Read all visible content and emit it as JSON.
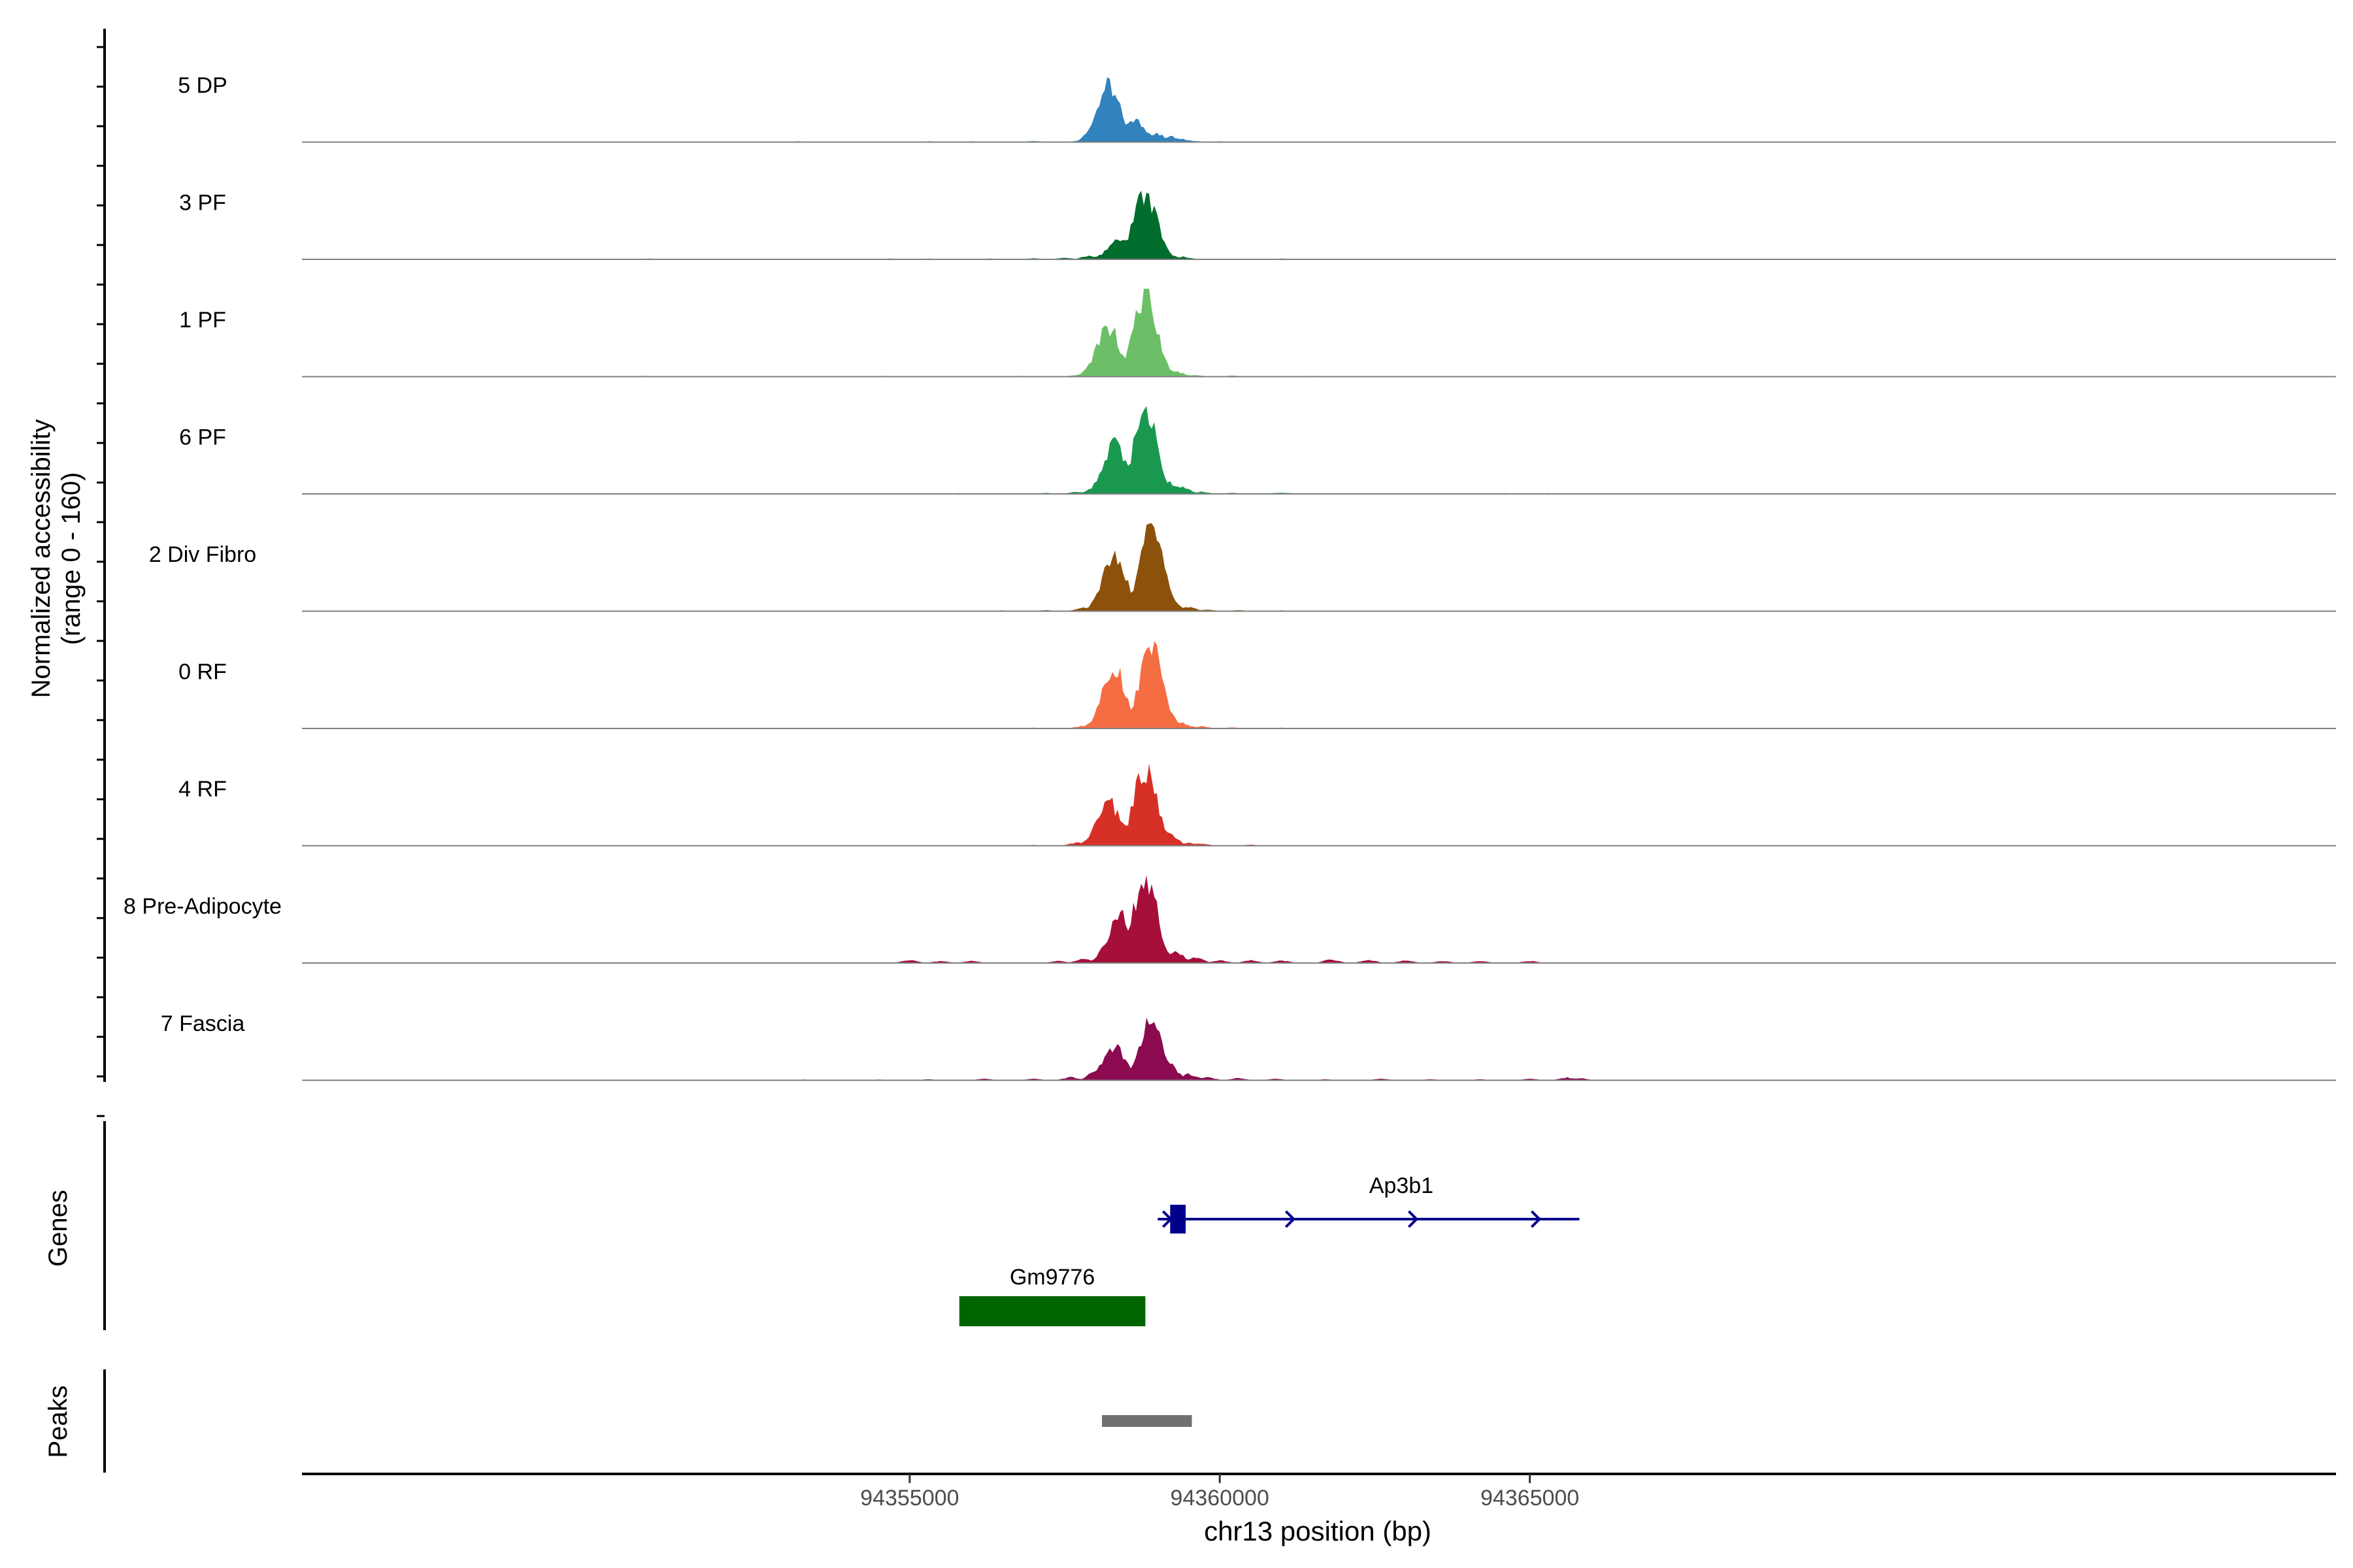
{
  "chart_data": {
    "type": "area",
    "title": "",
    "xlabel": "chr13 position (bp)",
    "ylabel_line1": "Normalized accessibility",
    "ylabel_line2": "(range 0 - 160)",
    "xlim": [
      94345200,
      94378000
    ],
    "ylim": [
      0,
      160
    ],
    "x_ticks": [
      94355000,
      94360000,
      94365000
    ],
    "x_tick_labels": [
      "94355000",
      "94360000",
      "94365000"
    ],
    "tracks": [
      {
        "name": "5 DP",
        "color": "#3182BD",
        "profile": [
          [
            94349900,
            1
          ],
          [
            94350800,
            1
          ],
          [
            94351400,
            1
          ],
          [
            94352600,
            1
          ],
          [
            94353200,
            1.5
          ],
          [
            94354600,
            1
          ],
          [
            94355300,
            1.5
          ],
          [
            94356000,
            1.5
          ],
          [
            94357000,
            2
          ],
          [
            94357700,
            2
          ],
          [
            94358000,
            4
          ],
          [
            94358400,
            7
          ],
          [
            94358800,
            15
          ],
          [
            94359000,
            16
          ],
          [
            94359200,
            12
          ],
          [
            94359400,
            6
          ],
          [
            94359600,
            2
          ],
          [
            94360000,
            1.5
          ],
          [
            94360600,
            1
          ],
          [
            94361400,
            1
          ],
          [
            94362500,
            1
          ],
          [
            94363500,
            1
          ],
          [
            94364200,
            1
          ],
          [
            94364800,
            1
          ],
          [
            94365400,
            0.5
          ]
        ],
        "peaks": [
          [
            94358600,
            40
          ],
          [
            94358200,
            110
          ],
          [
            94357000,
            1.5
          ]
        ]
      },
      {
        "name": "3 PF",
        "color": "#006D2C",
        "profile": [
          [
            94346500,
            0.5
          ],
          [
            94349000,
            1
          ],
          [
            94350800,
            1.5
          ],
          [
            94351700,
            1
          ],
          [
            94352600,
            1
          ],
          [
            94354000,
            1
          ],
          [
            94354700,
            1.5
          ],
          [
            94355300,
            1.5
          ],
          [
            94356300,
            1.5
          ],
          [
            94357000,
            2
          ],
          [
            94357500,
            3
          ],
          [
            94357900,
            7
          ],
          [
            94358300,
            11
          ],
          [
            94358700,
            10
          ],
          [
            94358900,
            14
          ],
          [
            94359200,
            8
          ],
          [
            94359400,
            5
          ],
          [
            94359500,
            2
          ],
          [
            94360500,
            1
          ],
          [
            94361000,
            1.5
          ],
          [
            94362000,
            1
          ],
          [
            94363000,
            1
          ],
          [
            94364000,
            1
          ],
          [
            94365000,
            1
          ],
          [
            94365800,
            1
          ]
        ],
        "peaks": [
          [
            94358800,
            120
          ],
          [
            94358400,
            40
          ]
        ]
      },
      {
        "name": "1 PF",
        "color": "#6CBF66",
        "profile": [
          [
            94347000,
            0.5
          ],
          [
            94348500,
            1
          ],
          [
            94350000,
            1
          ],
          [
            94350700,
            1.5
          ],
          [
            94352000,
            1
          ],
          [
            94353000,
            1
          ],
          [
            94354000,
            1
          ],
          [
            94354600,
            1.5
          ],
          [
            94356000,
            1
          ],
          [
            94356800,
            1.5
          ],
          [
            94357700,
            3
          ],
          [
            94358100,
            6
          ],
          [
            94358300,
            12
          ],
          [
            94358600,
            8
          ],
          [
            94358900,
            20
          ],
          [
            94359100,
            17
          ],
          [
            94359300,
            10
          ],
          [
            94359600,
            3
          ],
          [
            94360200,
            2
          ],
          [
            94360800,
            1
          ],
          [
            94361500,
            1.5
          ],
          [
            94362500,
            1
          ],
          [
            94363500,
            1
          ],
          [
            94364600,
            1
          ],
          [
            94365400,
            0.5
          ]
        ],
        "peaks": [
          [
            94358800,
            150
          ],
          [
            94358200,
            90
          ]
        ]
      },
      {
        "name": "6 PF",
        "color": "#1A9850",
        "profile": [
          [
            94347600,
            1
          ],
          [
            94349000,
            1
          ],
          [
            94350000,
            1
          ],
          [
            94351000,
            1
          ],
          [
            94352600,
            1
          ],
          [
            94354000,
            1
          ],
          [
            94355000,
            1
          ],
          [
            94355800,
            1.5
          ],
          [
            94356500,
            1.5
          ],
          [
            94357200,
            2
          ],
          [
            94357700,
            4
          ],
          [
            94358000,
            12
          ],
          [
            94358300,
            20
          ],
          [
            94358600,
            12
          ],
          [
            94358900,
            26
          ],
          [
            94359200,
            22
          ],
          [
            94359400,
            12
          ],
          [
            94359700,
            4
          ],
          [
            94360200,
            2
          ],
          [
            94361000,
            2
          ],
          [
            94361800,
            1
          ],
          [
            94362600,
            1.5
          ],
          [
            94363600,
            1
          ],
          [
            94364600,
            1.5
          ],
          [
            94365300,
            1.5
          ],
          [
            94365800,
            1
          ]
        ],
        "peaks": [
          [
            94358800,
            150
          ],
          [
            94358300,
            90
          ],
          [
            94361000,
            2
          ]
        ]
      },
      {
        "name": "2 Div Fibro",
        "color": "#8C510A",
        "profile": [
          [
            94348500,
            0.5
          ],
          [
            94350000,
            1
          ],
          [
            94351500,
            1
          ],
          [
            94353000,
            1
          ],
          [
            94354500,
            1
          ],
          [
            94355500,
            1
          ],
          [
            94356500,
            1.5
          ],
          [
            94357200,
            2
          ],
          [
            94357800,
            6
          ],
          [
            94358200,
            14
          ],
          [
            94358500,
            10
          ],
          [
            94358900,
            28
          ],
          [
            94359200,
            24
          ],
          [
            94359500,
            8
          ],
          [
            94359800,
            3
          ],
          [
            94360300,
            2
          ],
          [
            94361000,
            1.5
          ],
          [
            94362000,
            1
          ],
          [
            94363000,
            1
          ],
          [
            94364000,
            1
          ],
          [
            94364800,
            1
          ],
          [
            94365600,
            1
          ]
        ],
        "peaks": [
          [
            94358900,
            150
          ],
          [
            94358300,
            100
          ]
        ]
      },
      {
        "name": "0 RF",
        "color": "#F46D43",
        "profile": [
          [
            94346000,
            0.5
          ],
          [
            94347500,
            1
          ],
          [
            94349500,
            1
          ],
          [
            94351000,
            1
          ],
          [
            94352600,
            1
          ],
          [
            94354000,
            1
          ],
          [
            94355500,
            1
          ],
          [
            94357000,
            1.5
          ],
          [
            94357800,
            5
          ],
          [
            94358300,
            16
          ],
          [
            94358600,
            12
          ],
          [
            94358900,
            30
          ],
          [
            94359200,
            22
          ],
          [
            94359400,
            10
          ],
          [
            94359700,
            4
          ],
          [
            94360200,
            2
          ],
          [
            94361000,
            1.5
          ],
          [
            94362000,
            1
          ],
          [
            94363200,
            1
          ],
          [
            94364500,
            1
          ],
          [
            94365700,
            0.5
          ]
        ],
        "peaks": [
          [
            94358900,
            150
          ],
          [
            94358300,
            110
          ]
        ]
      },
      {
        "name": "4 RF",
        "color": "#D73027",
        "profile": [
          [
            94346500,
            0.5
          ],
          [
            94348000,
            1
          ],
          [
            94349500,
            1
          ],
          [
            94351200,
            1
          ],
          [
            94352600,
            1
          ],
          [
            94354000,
            1
          ],
          [
            94355000,
            1
          ],
          [
            94356000,
            1
          ],
          [
            94357000,
            1.5
          ],
          [
            94357700,
            6
          ],
          [
            94358100,
            15
          ],
          [
            94358400,
            10
          ],
          [
            94358800,
            30
          ],
          [
            94359200,
            22
          ],
          [
            94359500,
            6
          ],
          [
            94359700,
            4
          ],
          [
            94360500,
            2
          ],
          [
            94361300,
            1
          ],
          [
            94362300,
            1
          ],
          [
            94363300,
            1
          ],
          [
            94364400,
            1
          ],
          [
            94365300,
            1
          ]
        ],
        "peaks": [
          [
            94358800,
            140
          ],
          [
            94358200,
            80
          ]
        ]
      },
      {
        "name": "8 Pre-Adipocyte",
        "color": "#A50F3A",
        "profile": [
          [
            94355000,
            6
          ],
          [
            94355500,
            4
          ],
          [
            94356000,
            4
          ],
          [
            94357400,
            4
          ],
          [
            94357800,
            8
          ],
          [
            94358200,
            40
          ],
          [
            94358400,
            30
          ],
          [
            94358700,
            70
          ],
          [
            94359000,
            60
          ],
          [
            94359300,
            22
          ],
          [
            94359600,
            12
          ],
          [
            94360000,
            5
          ],
          [
            94360500,
            5
          ],
          [
            94361000,
            5
          ],
          [
            94361800,
            7
          ],
          [
            94362400,
            6
          ],
          [
            94363000,
            5
          ],
          [
            94363600,
            4
          ],
          [
            94364200,
            4
          ],
          [
            94365000,
            4
          ]
        ],
        "peaks": [
          [
            94358800,
            160
          ],
          [
            94358400,
            90
          ]
        ]
      },
      {
        "name": "7 Fascia",
        "color": "#8B0A50",
        "profile": [
          [
            94350000,
            1
          ],
          [
            94351000,
            1
          ],
          [
            94353300,
            1.5
          ],
          [
            94354500,
            1.5
          ],
          [
            94355300,
            2
          ],
          [
            94356200,
            3
          ],
          [
            94357000,
            3
          ],
          [
            94357600,
            6
          ],
          [
            94358000,
            18
          ],
          [
            94358300,
            28
          ],
          [
            94358600,
            20
          ],
          [
            94358900,
            40
          ],
          [
            94359200,
            30
          ],
          [
            94359500,
            12
          ],
          [
            94359800,
            6
          ],
          [
            94360300,
            4
          ],
          [
            94360900,
            3
          ],
          [
            94361700,
            2
          ],
          [
            94362600,
            3
          ],
          [
            94363400,
            2
          ],
          [
            94364200,
            2
          ],
          [
            94365000,
            3
          ],
          [
            94365600,
            5
          ],
          [
            94365800,
            4
          ]
        ],
        "peaks": [
          [
            94358900,
            110
          ],
          [
            94358300,
            60
          ]
        ]
      }
    ],
    "genes_label": "Genes",
    "genes": [
      {
        "name": "Ap3b1",
        "start": 94359000,
        "end": 94365800,
        "strand": "+",
        "color": "#00008B",
        "exon": [
          94359200,
          94359450
        ]
      },
      {
        "name": "Gm9776",
        "start": 94355800,
        "end": 94358800,
        "strand": "",
        "color": "#006400"
      }
    ],
    "peaks_label": "Peaks",
    "peaks": [
      {
        "start": 94358100,
        "end": 94359550,
        "color": "#707070"
      }
    ]
  }
}
